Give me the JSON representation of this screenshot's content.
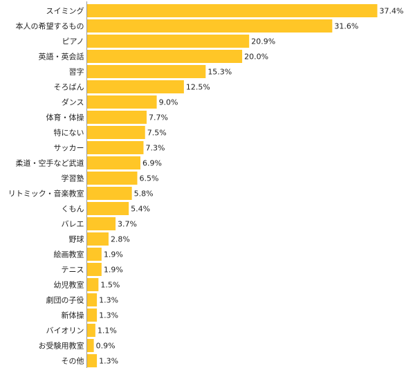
{
  "chart_data": {
    "type": "bar",
    "orientation": "horizontal",
    "title": "",
    "xlabel": "",
    "ylabel": "",
    "xlim": [
      0,
      37.4
    ],
    "grid": false,
    "legend": "none",
    "bar_color": "#FFC627",
    "axis_color": "#999999",
    "categories": [
      "スイミング",
      "本人の希望するもの",
      "ピアノ",
      "英語・英会話",
      "習字",
      "そろばん",
      "ダンス",
      "体育・体操",
      "特にない",
      "サッカー",
      "柔道・空手など武道",
      "学習塾",
      "リトミック・音楽教室",
      "くもん",
      "バレエ",
      "野球",
      "絵画教室",
      "テニス",
      "幼児教室",
      "劇団の子役",
      "新体操",
      "バイオリン",
      "お受験用教室",
      "その他"
    ],
    "values": [
      37.4,
      31.6,
      20.9,
      20.0,
      15.3,
      12.5,
      9.0,
      7.7,
      7.5,
      7.3,
      6.9,
      6.5,
      5.8,
      5.4,
      3.7,
      2.8,
      1.9,
      1.9,
      1.5,
      1.3,
      1.3,
      1.1,
      0.9,
      1.3
    ],
    "value_labels": [
      "37.4%",
      "31.6%",
      "20.9%",
      "20.0%",
      "15.3%",
      "12.5%",
      "9.0%",
      "7.7%",
      "7.5%",
      "7.3%",
      "6.9%",
      "6.5%",
      "5.8%",
      "5.4%",
      "3.7%",
      "2.8%",
      "1.9%",
      "1.9%",
      "1.5%",
      "1.3%",
      "1.3%",
      "1.1%",
      "0.9%",
      "1.3%"
    ]
  }
}
